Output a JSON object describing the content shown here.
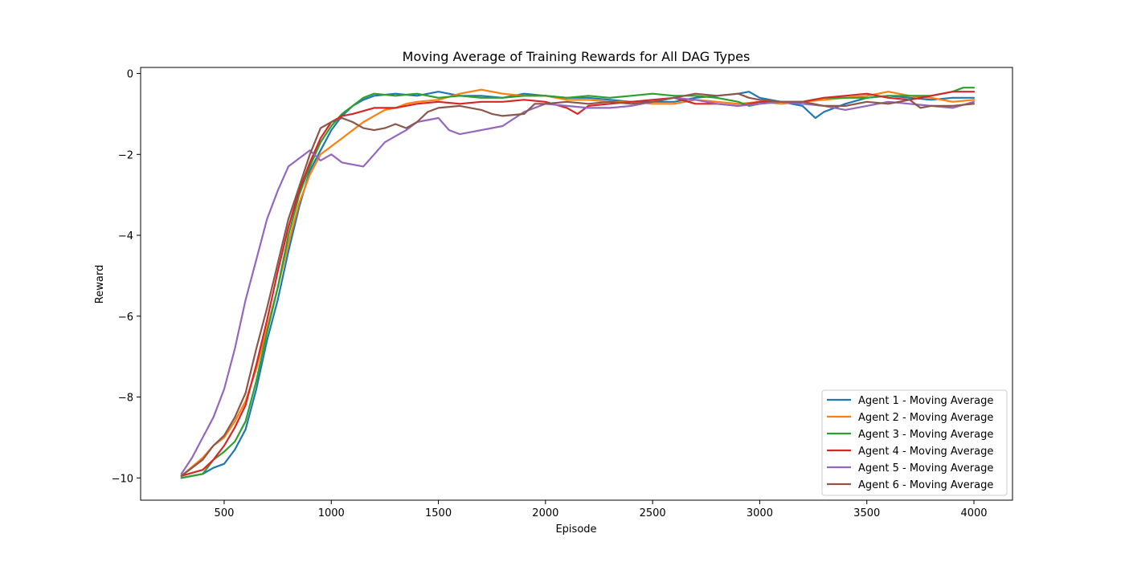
{
  "chart_data": {
    "type": "line",
    "title": "Moving Average of Training Rewards for All DAG Types",
    "xlabel": "Episode",
    "ylabel": "Reward",
    "xlim": [
      110,
      4180
    ],
    "ylim": [
      -10.55,
      0.15
    ],
    "xticks": [
      500,
      1000,
      1500,
      2000,
      2500,
      3000,
      3500,
      4000
    ],
    "yticks": [
      -10,
      -8,
      -6,
      -4,
      -2,
      0
    ],
    "ytick_labels": [
      "−10",
      "−8",
      "−6",
      "−4",
      "−2",
      "0"
    ],
    "grid": false,
    "legend_position": "lower right",
    "series": [
      {
        "name": "Agent 1 - Moving Average",
        "color": "#1f77b4",
        "points": [
          [
            300,
            -10
          ],
          [
            400,
            -9.9
          ],
          [
            450,
            -9.75
          ],
          [
            500,
            -9.65
          ],
          [
            550,
            -9.3
          ],
          [
            600,
            -8.8
          ],
          [
            650,
            -7.8
          ],
          [
            700,
            -6.6
          ],
          [
            750,
            -5.6
          ],
          [
            800,
            -4.4
          ],
          [
            850,
            -3.3
          ],
          [
            900,
            -2.4
          ],
          [
            950,
            -1.9
          ],
          [
            1000,
            -1.4
          ],
          [
            1050,
            -1.05
          ],
          [
            1100,
            -0.8
          ],
          [
            1150,
            -0.65
          ],
          [
            1200,
            -0.55
          ],
          [
            1300,
            -0.5
          ],
          [
            1400,
            -0.55
          ],
          [
            1500,
            -0.45
          ],
          [
            1600,
            -0.55
          ],
          [
            1700,
            -0.55
          ],
          [
            1800,
            -0.6
          ],
          [
            1900,
            -0.5
          ],
          [
            2000,
            -0.55
          ],
          [
            2100,
            -0.6
          ],
          [
            2200,
            -0.6
          ],
          [
            2300,
            -0.65
          ],
          [
            2400,
            -0.7
          ],
          [
            2500,
            -0.7
          ],
          [
            2600,
            -0.7
          ],
          [
            2700,
            -0.6
          ],
          [
            2800,
            -0.55
          ],
          [
            2900,
            -0.5
          ],
          [
            2950,
            -0.45
          ],
          [
            3000,
            -0.6
          ],
          [
            3100,
            -0.7
          ],
          [
            3200,
            -0.8
          ],
          [
            3260,
            -1.1
          ],
          [
            3300,
            -0.95
          ],
          [
            3400,
            -0.75
          ],
          [
            3500,
            -0.6
          ],
          [
            3600,
            -0.55
          ],
          [
            3700,
            -0.6
          ],
          [
            3800,
            -0.65
          ],
          [
            3900,
            -0.6
          ],
          [
            4000,
            -0.6
          ]
        ]
      },
      {
        "name": "Agent 2 - Moving Average",
        "color": "#ff7f0e",
        "points": [
          [
            300,
            -9.95
          ],
          [
            400,
            -9.5
          ],
          [
            450,
            -9.2
          ],
          [
            500,
            -9.0
          ],
          [
            550,
            -8.6
          ],
          [
            600,
            -8.1
          ],
          [
            650,
            -7.3
          ],
          [
            700,
            -6.3
          ],
          [
            750,
            -5.3
          ],
          [
            800,
            -4.2
          ],
          [
            850,
            -3.2
          ],
          [
            900,
            -2.5
          ],
          [
            950,
            -2.0
          ],
          [
            1000,
            -1.8
          ],
          [
            1050,
            -1.6
          ],
          [
            1100,
            -1.4
          ],
          [
            1150,
            -1.2
          ],
          [
            1200,
            -1.05
          ],
          [
            1250,
            -0.9
          ],
          [
            1300,
            -0.85
          ],
          [
            1350,
            -0.75
          ],
          [
            1400,
            -0.7
          ],
          [
            1500,
            -0.65
          ],
          [
            1600,
            -0.5
          ],
          [
            1650,
            -0.45
          ],
          [
            1700,
            -0.4
          ],
          [
            1800,
            -0.5
          ],
          [
            1900,
            -0.55
          ],
          [
            2000,
            -0.55
          ],
          [
            2100,
            -0.65
          ],
          [
            2200,
            -0.65
          ],
          [
            2300,
            -0.7
          ],
          [
            2400,
            -0.7
          ],
          [
            2500,
            -0.75
          ],
          [
            2600,
            -0.75
          ],
          [
            2700,
            -0.65
          ],
          [
            2800,
            -0.7
          ],
          [
            2900,
            -0.75
          ],
          [
            3000,
            -0.7
          ],
          [
            3100,
            -0.75
          ],
          [
            3200,
            -0.7
          ],
          [
            3300,
            -0.65
          ],
          [
            3400,
            -0.6
          ],
          [
            3500,
            -0.55
          ],
          [
            3600,
            -0.45
          ],
          [
            3700,
            -0.55
          ],
          [
            3800,
            -0.6
          ],
          [
            3900,
            -0.7
          ],
          [
            4000,
            -0.65
          ]
        ]
      },
      {
        "name": "Agent 3 - Moving Average",
        "color": "#2ca02c",
        "points": [
          [
            300,
            -10.0
          ],
          [
            400,
            -9.9
          ],
          [
            450,
            -9.55
          ],
          [
            500,
            -9.35
          ],
          [
            550,
            -9.1
          ],
          [
            600,
            -8.6
          ],
          [
            650,
            -7.6
          ],
          [
            700,
            -6.4
          ],
          [
            750,
            -5.3
          ],
          [
            800,
            -4.0
          ],
          [
            850,
            -3.0
          ],
          [
            900,
            -2.3
          ],
          [
            950,
            -1.7
          ],
          [
            1000,
            -1.3
          ],
          [
            1050,
            -1.0
          ],
          [
            1100,
            -0.8
          ],
          [
            1150,
            -0.6
          ],
          [
            1200,
            -0.5
          ],
          [
            1300,
            -0.55
          ],
          [
            1400,
            -0.5
          ],
          [
            1500,
            -0.6
          ],
          [
            1600,
            -0.55
          ],
          [
            1700,
            -0.6
          ],
          [
            1800,
            -0.6
          ],
          [
            1900,
            -0.55
          ],
          [
            2000,
            -0.55
          ],
          [
            2100,
            -0.6
          ],
          [
            2200,
            -0.55
          ],
          [
            2300,
            -0.6
          ],
          [
            2400,
            -0.55
          ],
          [
            2500,
            -0.5
          ],
          [
            2600,
            -0.55
          ],
          [
            2700,
            -0.55
          ],
          [
            2800,
            -0.6
          ],
          [
            2900,
            -0.7
          ],
          [
            2950,
            -0.8
          ],
          [
            3000,
            -0.75
          ],
          [
            3100,
            -0.7
          ],
          [
            3200,
            -0.7
          ],
          [
            3300,
            -0.6
          ],
          [
            3400,
            -0.6
          ],
          [
            3500,
            -0.6
          ],
          [
            3600,
            -0.55
          ],
          [
            3700,
            -0.55
          ],
          [
            3800,
            -0.55
          ],
          [
            3900,
            -0.45
          ],
          [
            3950,
            -0.35
          ],
          [
            4000,
            -0.35
          ]
        ]
      },
      {
        "name": "Agent 4 - Moving Average",
        "color": "#d62728",
        "points": [
          [
            300,
            -9.95
          ],
          [
            400,
            -9.8
          ],
          [
            450,
            -9.55
          ],
          [
            500,
            -9.2
          ],
          [
            550,
            -8.75
          ],
          [
            600,
            -8.2
          ],
          [
            650,
            -7.2
          ],
          [
            700,
            -6.1
          ],
          [
            750,
            -4.9
          ],
          [
            800,
            -3.8
          ],
          [
            850,
            -2.9
          ],
          [
            900,
            -2.2
          ],
          [
            950,
            -1.6
          ],
          [
            1000,
            -1.2
          ],
          [
            1050,
            -1.05
          ],
          [
            1100,
            -1.0
          ],
          [
            1200,
            -0.85
          ],
          [
            1300,
            -0.85
          ],
          [
            1400,
            -0.75
          ],
          [
            1500,
            -0.7
          ],
          [
            1600,
            -0.75
          ],
          [
            1700,
            -0.7
          ],
          [
            1800,
            -0.7
          ],
          [
            1900,
            -0.65
          ],
          [
            2000,
            -0.7
          ],
          [
            2100,
            -0.85
          ],
          [
            2150,
            -1.0
          ],
          [
            2200,
            -0.8
          ],
          [
            2300,
            -0.75
          ],
          [
            2400,
            -0.7
          ],
          [
            2500,
            -0.65
          ],
          [
            2600,
            -0.6
          ],
          [
            2700,
            -0.75
          ],
          [
            2800,
            -0.75
          ],
          [
            2900,
            -0.8
          ],
          [
            3000,
            -0.7
          ],
          [
            3100,
            -0.7
          ],
          [
            3200,
            -0.7
          ],
          [
            3300,
            -0.6
          ],
          [
            3400,
            -0.55
          ],
          [
            3500,
            -0.5
          ],
          [
            3600,
            -0.6
          ],
          [
            3700,
            -0.65
          ],
          [
            3800,
            -0.55
          ],
          [
            3900,
            -0.45
          ],
          [
            4000,
            -0.45
          ]
        ]
      },
      {
        "name": "Agent 5 - Moving Average",
        "color": "#9467bd",
        "points": [
          [
            300,
            -9.9
          ],
          [
            350,
            -9.5
          ],
          [
            400,
            -9.0
          ],
          [
            450,
            -8.5
          ],
          [
            500,
            -7.8
          ],
          [
            550,
            -6.8
          ],
          [
            600,
            -5.6
          ],
          [
            650,
            -4.6
          ],
          [
            700,
            -3.6
          ],
          [
            750,
            -2.9
          ],
          [
            800,
            -2.3
          ],
          [
            850,
            -2.1
          ],
          [
            900,
            -1.9
          ],
          [
            950,
            -2.15
          ],
          [
            1000,
            -2.0
          ],
          [
            1050,
            -2.2
          ],
          [
            1100,
            -2.25
          ],
          [
            1150,
            -2.3
          ],
          [
            1200,
            -2.0
          ],
          [
            1250,
            -1.7
          ],
          [
            1300,
            -1.55
          ],
          [
            1350,
            -1.4
          ],
          [
            1400,
            -1.2
          ],
          [
            1450,
            -1.15
          ],
          [
            1500,
            -1.1
          ],
          [
            1550,
            -1.4
          ],
          [
            1600,
            -1.5
          ],
          [
            1700,
            -1.4
          ],
          [
            1800,
            -1.3
          ],
          [
            1900,
            -0.95
          ],
          [
            2000,
            -0.75
          ],
          [
            2100,
            -0.8
          ],
          [
            2200,
            -0.85
          ],
          [
            2300,
            -0.85
          ],
          [
            2400,
            -0.8
          ],
          [
            2500,
            -0.7
          ],
          [
            2600,
            -0.6
          ],
          [
            2700,
            -0.65
          ],
          [
            2800,
            -0.75
          ],
          [
            2900,
            -0.8
          ],
          [
            3000,
            -0.75
          ],
          [
            3100,
            -0.7
          ],
          [
            3200,
            -0.75
          ],
          [
            3300,
            -0.8
          ],
          [
            3400,
            -0.9
          ],
          [
            3500,
            -0.8
          ],
          [
            3600,
            -0.7
          ],
          [
            3700,
            -0.75
          ],
          [
            3800,
            -0.8
          ],
          [
            3900,
            -0.85
          ],
          [
            4000,
            -0.7
          ]
        ]
      },
      {
        "name": "Agent 6 - Moving Average",
        "color": "#8c564b",
        "points": [
          [
            300,
            -9.95
          ],
          [
            400,
            -9.55
          ],
          [
            450,
            -9.2
          ],
          [
            500,
            -8.95
          ],
          [
            550,
            -8.5
          ],
          [
            600,
            -7.9
          ],
          [
            650,
            -6.8
          ],
          [
            700,
            -5.8
          ],
          [
            750,
            -4.7
          ],
          [
            800,
            -3.6
          ],
          [
            850,
            -2.8
          ],
          [
            900,
            -2.0
          ],
          [
            950,
            -1.35
          ],
          [
            1000,
            -1.2
          ],
          [
            1050,
            -1.1
          ],
          [
            1100,
            -1.2
          ],
          [
            1150,
            -1.35
          ],
          [
            1200,
            -1.4
          ],
          [
            1250,
            -1.35
          ],
          [
            1300,
            -1.25
          ],
          [
            1350,
            -1.35
          ],
          [
            1400,
            -1.2
          ],
          [
            1450,
            -0.95
          ],
          [
            1500,
            -0.85
          ],
          [
            1600,
            -0.8
          ],
          [
            1700,
            -0.9
          ],
          [
            1750,
            -1.0
          ],
          [
            1800,
            -1.05
          ],
          [
            1900,
            -1.0
          ],
          [
            1950,
            -0.75
          ],
          [
            2000,
            -0.75
          ],
          [
            2100,
            -0.7
          ],
          [
            2200,
            -0.75
          ],
          [
            2300,
            -0.7
          ],
          [
            2400,
            -0.75
          ],
          [
            2500,
            -0.7
          ],
          [
            2600,
            -0.6
          ],
          [
            2700,
            -0.5
          ],
          [
            2800,
            -0.55
          ],
          [
            2900,
            -0.5
          ],
          [
            2950,
            -0.6
          ],
          [
            3000,
            -0.65
          ],
          [
            3100,
            -0.7
          ],
          [
            3200,
            -0.7
          ],
          [
            3300,
            -0.8
          ],
          [
            3400,
            -0.8
          ],
          [
            3500,
            -0.7
          ],
          [
            3600,
            -0.75
          ],
          [
            3700,
            -0.65
          ],
          [
            3750,
            -0.85
          ],
          [
            3800,
            -0.8
          ],
          [
            3900,
            -0.8
          ],
          [
            4000,
            -0.75
          ]
        ]
      }
    ]
  }
}
